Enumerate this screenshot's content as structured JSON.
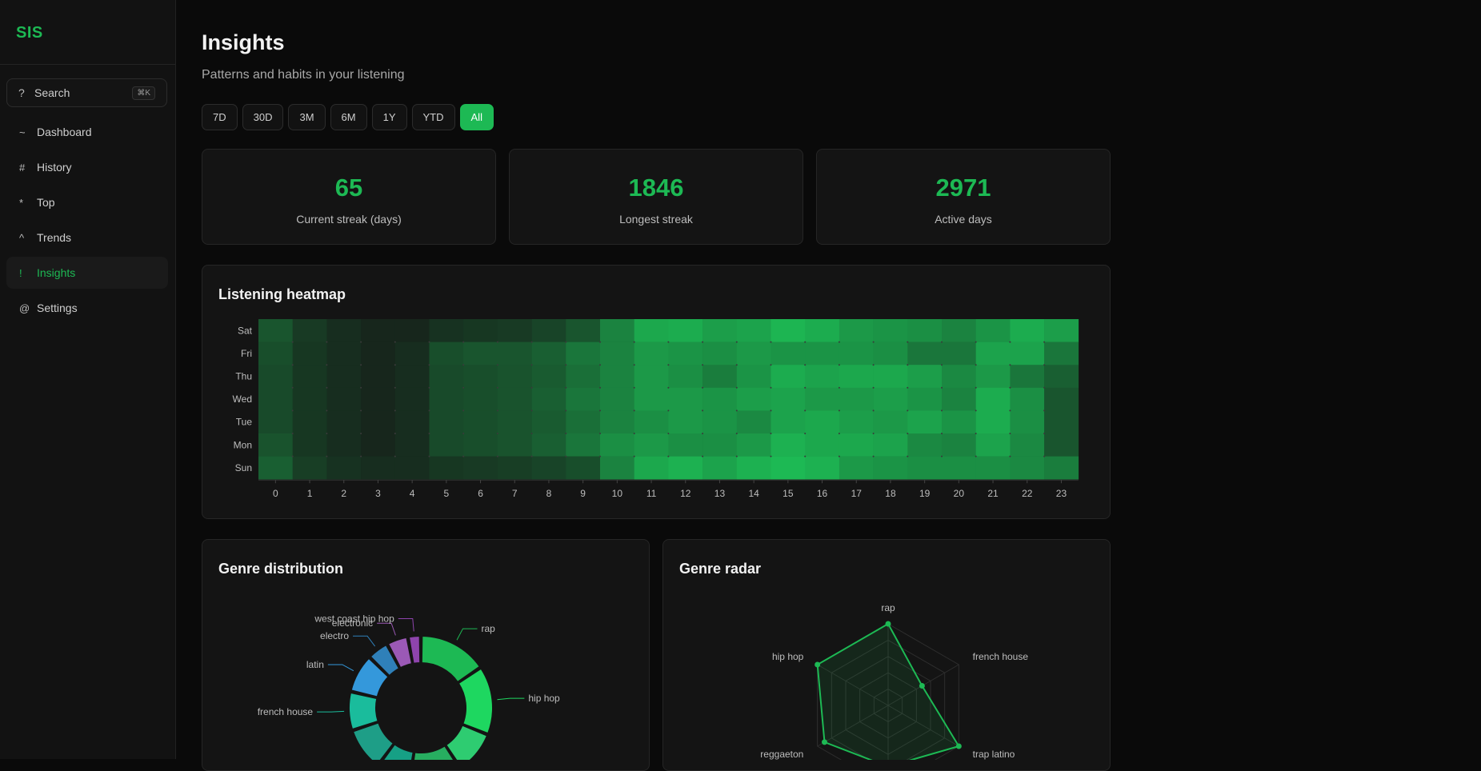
{
  "app": {
    "logo": "SIS"
  },
  "search": {
    "icon": "question-glyph",
    "glyph": "?",
    "label": "Search",
    "shortcut": "⌘K"
  },
  "nav": {
    "items": [
      {
        "glyph": "~",
        "label": "Dashboard",
        "active": false
      },
      {
        "glyph": "#",
        "label": "History",
        "active": false
      },
      {
        "glyph": "*",
        "label": "Top",
        "active": false
      },
      {
        "glyph": "^",
        "label": "Trends",
        "active": false
      },
      {
        "glyph": "!",
        "label": "Insights",
        "active": true
      },
      {
        "glyph": "@",
        "label": "Settings",
        "active": false
      }
    ]
  },
  "page": {
    "title": "Insights",
    "subtitle": "Patterns and habits in your listening"
  },
  "ranges": {
    "items": [
      "7D",
      "30D",
      "3M",
      "6M",
      "1Y",
      "YTD",
      "All"
    ],
    "selected": "All"
  },
  "stats": [
    {
      "value": "65",
      "label": "Current streak (days)"
    },
    {
      "value": "1846",
      "label": "Longest streak"
    },
    {
      "value": "2971",
      "label": "Active days"
    }
  ],
  "heatmap": {
    "title": "Listening heatmap"
  },
  "genre_distribution": {
    "title": "Genre distribution"
  },
  "genre_radar": {
    "title": "Genre radar"
  },
  "colors": {
    "accent": "#1db954"
  },
  "chart_data": [
    {
      "type": "heatmap",
      "title": "Listening heatmap",
      "x": [
        "0",
        "1",
        "2",
        "3",
        "4",
        "5",
        "6",
        "7",
        "8",
        "9",
        "10",
        "11",
        "12",
        "13",
        "14",
        "15",
        "16",
        "17",
        "18",
        "19",
        "20",
        "21",
        "22",
        "23"
      ],
      "y": [
        "Sat",
        "Fri",
        "Thu",
        "Wed",
        "Tue",
        "Mon",
        "Sun"
      ],
      "values": [
        [
          0.15,
          0.05,
          0.02,
          0.01,
          0.01,
          0.03,
          0.04,
          0.05,
          0.08,
          0.15,
          0.45,
          0.8,
          0.85,
          0.7,
          0.75,
          0.95,
          0.85,
          0.65,
          0.6,
          0.55,
          0.45,
          0.6,
          0.85,
          0.7
        ],
        [
          0.12,
          0.04,
          0.02,
          0.01,
          0.02,
          0.12,
          0.15,
          0.15,
          0.2,
          0.35,
          0.45,
          0.65,
          0.6,
          0.55,
          0.65,
          0.6,
          0.6,
          0.6,
          0.55,
          0.35,
          0.35,
          0.75,
          0.75,
          0.35
        ],
        [
          0.1,
          0.04,
          0.02,
          0.01,
          0.02,
          0.1,
          0.12,
          0.14,
          0.18,
          0.3,
          0.45,
          0.65,
          0.55,
          0.4,
          0.6,
          0.85,
          0.75,
          0.8,
          0.8,
          0.7,
          0.5,
          0.65,
          0.35,
          0.2
        ],
        [
          0.1,
          0.04,
          0.02,
          0.01,
          0.02,
          0.1,
          0.12,
          0.14,
          0.2,
          0.35,
          0.45,
          0.65,
          0.65,
          0.6,
          0.7,
          0.75,
          0.65,
          0.65,
          0.7,
          0.6,
          0.45,
          0.85,
          0.55,
          0.15
        ],
        [
          0.1,
          0.04,
          0.02,
          0.01,
          0.02,
          0.1,
          0.12,
          0.14,
          0.18,
          0.3,
          0.45,
          0.55,
          0.65,
          0.6,
          0.5,
          0.75,
          0.8,
          0.7,
          0.65,
          0.75,
          0.6,
          0.85,
          0.55,
          0.15
        ],
        [
          0.14,
          0.04,
          0.02,
          0.01,
          0.02,
          0.1,
          0.12,
          0.14,
          0.2,
          0.35,
          0.55,
          0.65,
          0.55,
          0.55,
          0.65,
          0.9,
          0.8,
          0.8,
          0.75,
          0.5,
          0.45,
          0.75,
          0.5,
          0.15
        ],
        [
          0.2,
          0.06,
          0.03,
          0.02,
          0.02,
          0.04,
          0.05,
          0.06,
          0.08,
          0.12,
          0.45,
          0.8,
          0.9,
          0.75,
          0.9,
          1.0,
          0.9,
          0.65,
          0.6,
          0.55,
          0.55,
          0.55,
          0.5,
          0.4
        ]
      ]
    },
    {
      "type": "pie",
      "title": "Genre distribution",
      "labels": [
        "rap",
        "hip hop",
        "",
        "",
        "",
        "",
        "french house",
        "latin",
        "electro",
        "electronic",
        "west coast hip hop"
      ],
      "values": [
        16,
        16,
        10,
        12,
        8,
        10,
        9,
        9,
        5,
        5,
        3
      ],
      "colors": [
        "#1db954",
        "#1ed760",
        "#2ecc71",
        "#27ae60",
        "#16a085",
        "#1e9e87",
        "#1abc9c",
        "#3498db",
        "#2f80b9",
        "#9b59b6",
        "#8e44ad"
      ]
    },
    {
      "type": "radar",
      "title": "Genre radar",
      "axes": [
        "rap",
        "french house",
        "trap latino",
        "",
        "reggaeton",
        "hip hop"
      ],
      "values": [
        1.0,
        0.48,
        1.0,
        0.75,
        0.9,
        1.0
      ],
      "max": 1.0
    }
  ]
}
